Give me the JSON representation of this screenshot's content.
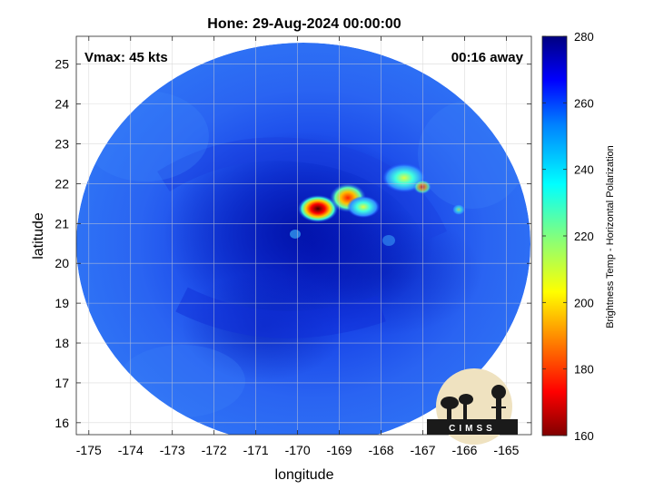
{
  "figure": {
    "title": "Hone: 29-Aug-2024 00:00:00",
    "vmax_text": "Vmax: 45 kts",
    "away_text": "00:16 away",
    "xlabel": "longitude",
    "ylabel": "latitude",
    "logo_text": "CIMSS"
  },
  "map_data": {
    "type": "heatmap",
    "xlim": [
      -175.3,
      -164.4
    ],
    "ylim": [
      15.7,
      25.7
    ],
    "xticks": [
      -175,
      -174,
      -173,
      -172,
      -171,
      -170,
      -169,
      -168,
      -167,
      -166,
      -165
    ],
    "yticks": [
      16,
      17,
      18,
      19,
      20,
      21,
      22,
      23,
      24,
      25
    ],
    "grid": true,
    "swath_center": [
      -169.8,
      20.8
    ],
    "storm_center": [
      -169.5,
      21.35
    ],
    "colorbar": {
      "label": "Brightness Temp - Horizontal Polarization",
      "range": [
        160,
        280
      ],
      "ticks": [
        160,
        180,
        200,
        220,
        240,
        260,
        280
      ],
      "colormap": [
        "#800000",
        "#ff0000",
        "#ff8000",
        "#ffff00",
        "#80ff80",
        "#00ffff",
        "#0080ff",
        "#0000ff",
        "#000080"
      ]
    },
    "features": [
      {
        "lon": -169.45,
        "lat": 21.35,
        "value": 165
      },
      {
        "lon": -168.95,
        "lat": 21.65,
        "value": 195
      },
      {
        "lon": -168.7,
        "lat": 21.5,
        "value": 215
      },
      {
        "lon": -167.9,
        "lat": 22.2,
        "value": 235
      },
      {
        "lon": -167.6,
        "lat": 22.0,
        "value": 240
      }
    ]
  }
}
